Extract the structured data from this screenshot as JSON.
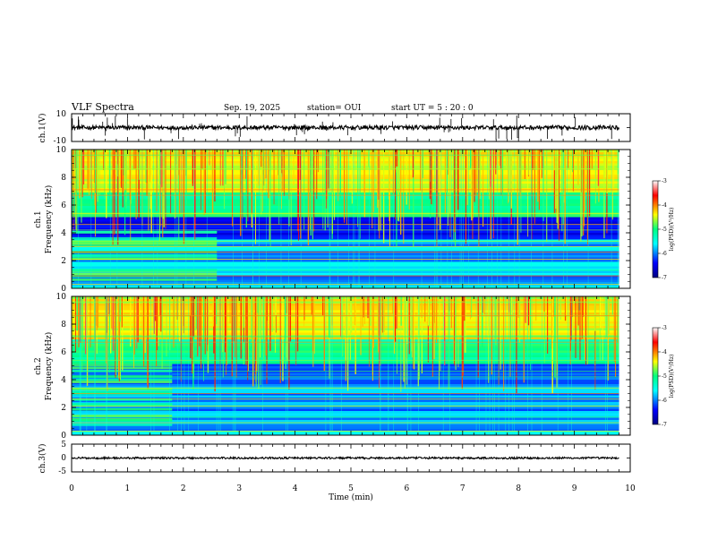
{
  "header": {
    "title": "VLF Spectra",
    "date": "Sep. 19, 2025",
    "station": "station= OUI",
    "start": "start  UT  =   5  : 20 : 0"
  },
  "colors": {
    "spectrum_low": "#000080",
    "spectrum_mid": "#00ff80",
    "spectrum_high": "#ff0000",
    "trace": "#000000"
  },
  "chart_data": [
    {
      "type": "line",
      "name": "ch1-waveform",
      "ylabel": "ch.1(V)",
      "xlim": [
        0,
        10
      ],
      "ylim": [
        -10,
        10
      ],
      "yticks": [
        "10",
        "-10"
      ],
      "baseline": 0,
      "noise_amplitude": 1.5,
      "x_end": 9.8
    },
    {
      "type": "heatmap",
      "name": "ch1-spectrogram",
      "ylabel": "ch.1",
      "ylabel2": "Frequency (kHz)",
      "xlim": [
        0,
        10
      ],
      "ylim": [
        0,
        10
      ],
      "yticks": [
        "0",
        "2",
        "4",
        "6",
        "8",
        "10"
      ],
      "x_end": 9.8,
      "colorbar": {
        "label": "log(PSD)(V²/Hz)",
        "range": [
          -7,
          -3
        ],
        "ticks": [
          "-3",
          "-4",
          "-5",
          "-6",
          "-7"
        ]
      }
    },
    {
      "type": "heatmap",
      "name": "ch2-spectrogram",
      "ylabel": "ch.2",
      "ylabel2": "Frequency (kHz)",
      "xlim": [
        0,
        10
      ],
      "ylim": [
        0,
        10
      ],
      "yticks": [
        "0",
        "2",
        "4",
        "6",
        "8",
        "10"
      ],
      "x_end": 9.8,
      "colorbar": {
        "label": "log(PSD)(V²/Hz)",
        "range": [
          -7,
          -3
        ],
        "ticks": [
          "-3",
          "-4",
          "-5",
          "-6",
          "-7"
        ]
      }
    },
    {
      "type": "line",
      "name": "ch3-waveform",
      "ylabel": "ch.3(V)",
      "xlim": [
        0,
        10
      ],
      "ylim": [
        -5,
        5
      ],
      "yticks": [
        "5",
        "0",
        "-5"
      ],
      "baseline": 0,
      "noise_amplitude": 0.4,
      "x_end": 9.8
    }
  ],
  "xaxis": {
    "label": "Time (min)",
    "ticks": [
      "0",
      "1",
      "2",
      "3",
      "4",
      "5",
      "6",
      "7",
      "8",
      "9",
      "10"
    ]
  }
}
